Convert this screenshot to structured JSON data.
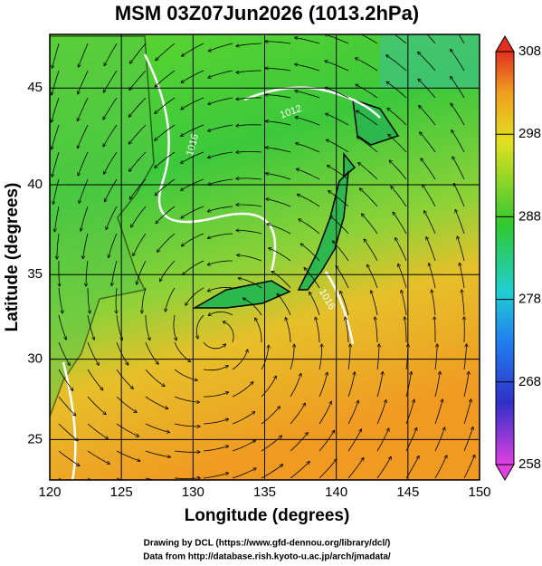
{
  "title": "MSM 03Z07Jun2026 (1013.2hPa)",
  "x_axis": {
    "label": "Longitude (degrees)",
    "lim": [
      120,
      150
    ],
    "ticks": [
      120,
      125,
      130,
      135,
      140,
      145,
      150
    ]
  },
  "y_axis": {
    "label": "Latitude  (degrees)",
    "lim": [
      22.4,
      47.6
    ],
    "ticks": [
      25,
      30,
      35,
      40,
      45
    ]
  },
  "colorbar": {
    "lim": [
      258,
      308
    ],
    "ticks": [
      258,
      268,
      278,
      288,
      298,
      308
    ]
  },
  "isobar_labels": [
    "1016",
    "1016",
    "1012"
  ],
  "credits": [
    "Drawing by DCL (https://www.gfd-dennou.org/library/dcl/)",
    "Data from http://database.rish.kyoto-u.ac.jp/arch/jmadata/"
  ]
}
